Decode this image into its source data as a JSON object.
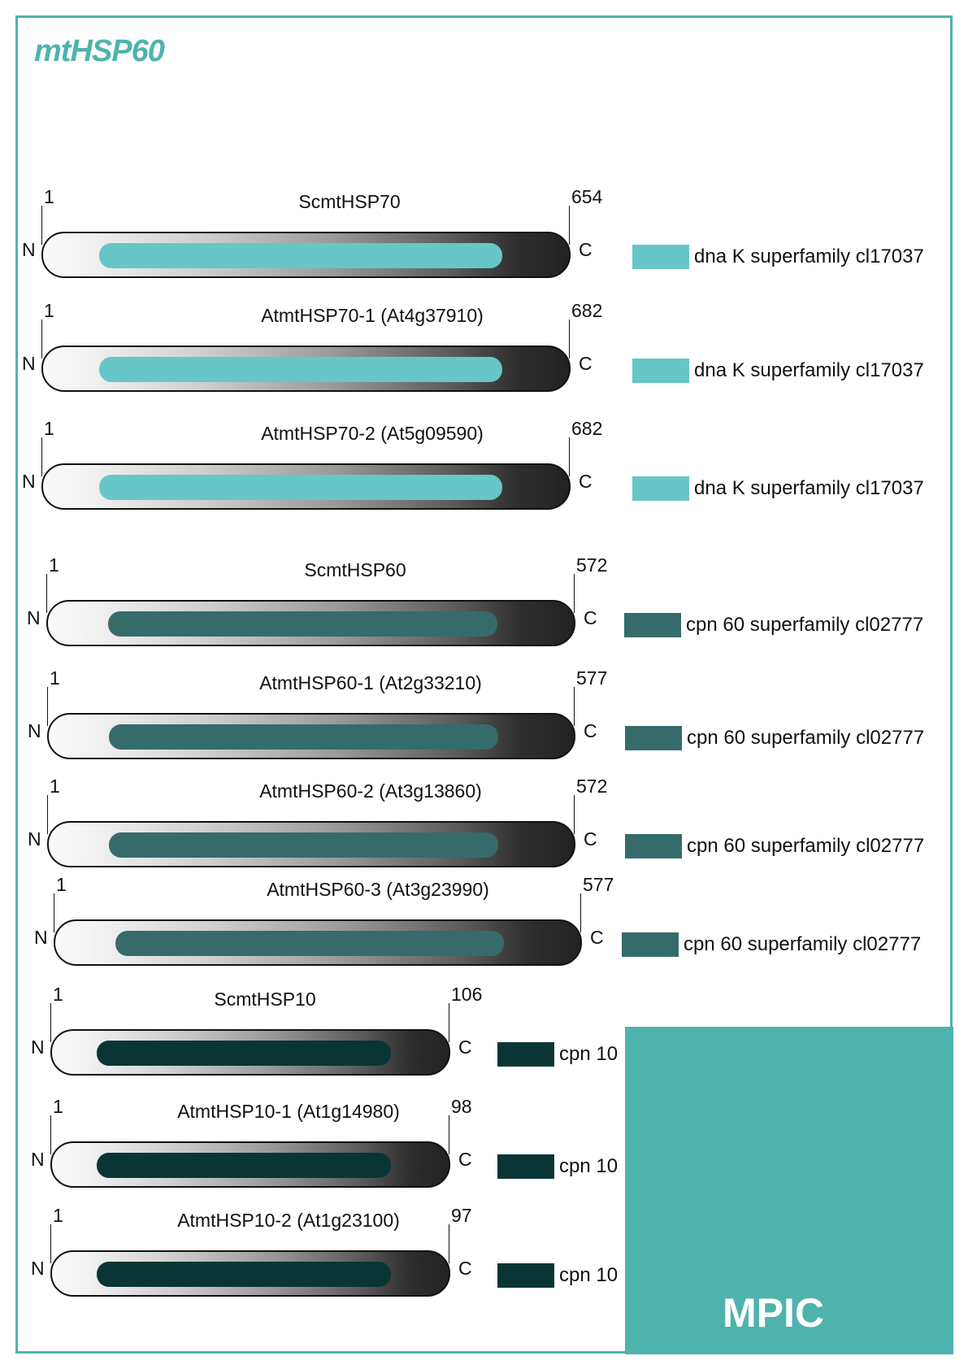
{
  "title": "mtHSP60",
  "logo": "MPIC",
  "colors": {
    "frame": "#4fb3ad",
    "dnaK": "#66c6c8",
    "cpn60": "#366b6b",
    "cpn10": "#0a3535"
  },
  "proteins": [
    {
      "name": "ScmtHSP70",
      "start": "1",
      "end": "654",
      "n": "N",
      "c": "C",
      "domain": "dna K superfamily cl17037",
      "group": "dnaK"
    },
    {
      "name": "AtmtHSP70-1 (At4g37910)",
      "start": "1",
      "end": "682",
      "n": "N",
      "c": "C",
      "domain": "dna K superfamily cl17037",
      "group": "dnaK"
    },
    {
      "name": "AtmtHSP70-2 (At5g09590)",
      "start": "1",
      "end": "682",
      "n": "N",
      "c": "C",
      "domain": "dna K superfamily cl17037",
      "group": "dnaK"
    },
    {
      "name": "ScmtHSP60",
      "start": "1",
      "end": "572",
      "n": "N",
      "c": "C",
      "domain": "cpn 60 superfamily cl02777",
      "group": "cpn60"
    },
    {
      "name": "AtmtHSP60-1 (At2g33210)",
      "start": "1",
      "end": "577",
      "n": "N",
      "c": "C",
      "domain": "cpn 60 superfamily cl02777",
      "group": "cpn60"
    },
    {
      "name": "AtmtHSP60-2 (At3g13860)",
      "start": "1",
      "end": "572",
      "n": "N",
      "c": "C",
      "domain": "cpn 60 superfamily cl02777",
      "group": "cpn60"
    },
    {
      "name": "AtmtHSP60-3 (At3g23990)",
      "start": "1",
      "end": "577",
      "n": "N",
      "c": "C",
      "domain": "cpn 60 superfamily cl02777",
      "group": "cpn60"
    },
    {
      "name": "ScmtHSP10",
      "start": "1",
      "end": "106",
      "n": "N",
      "c": "C",
      "domain": "cpn 10",
      "group": "cpn10"
    },
    {
      "name": "AtmtHSP10-1 (At1g14980)",
      "start": "1",
      "end": "98",
      "n": "N",
      "c": "C",
      "domain": "cpn 10",
      "group": "cpn10"
    },
    {
      "name": "AtmtHSP10-2 (At1g23100)",
      "start": "1",
      "end": "97",
      "n": "N",
      "c": "C",
      "domain": "cpn 10",
      "group": "cpn10"
    }
  ]
}
